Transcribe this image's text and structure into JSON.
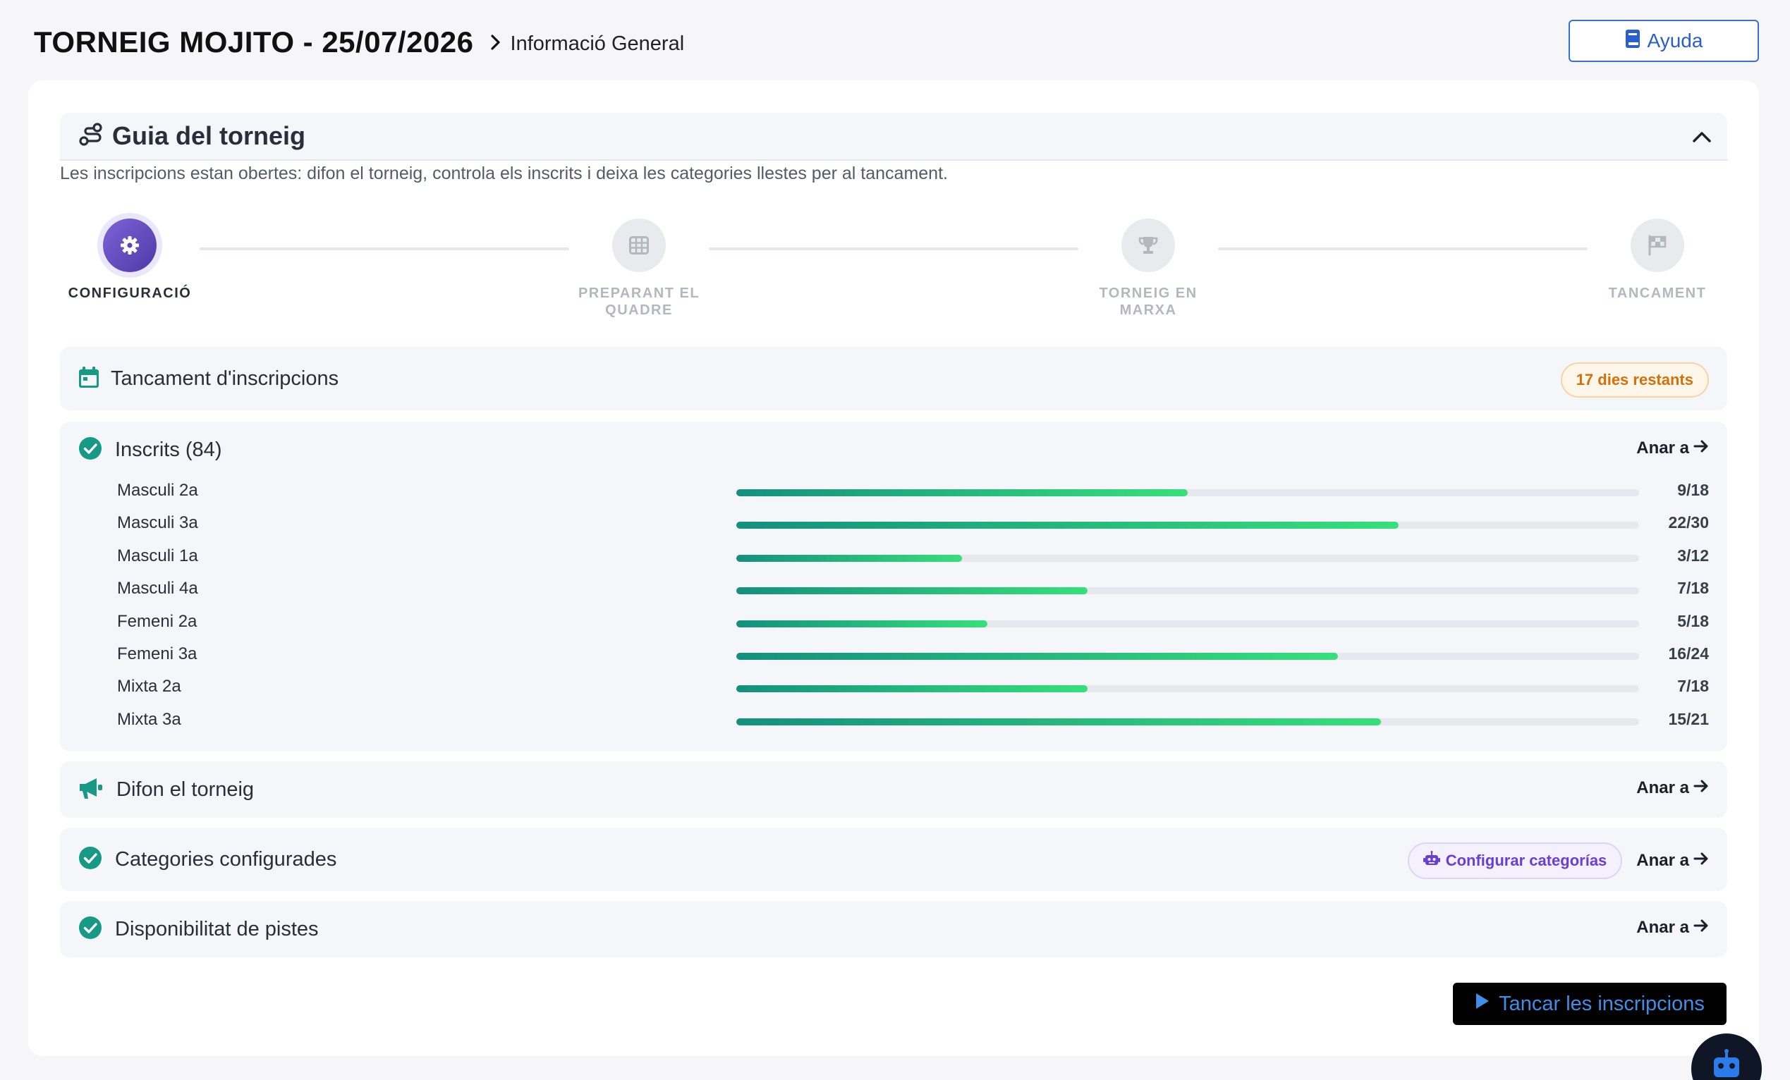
{
  "header": {
    "title": "TORNEIG MOJITO - 25/07/2026",
    "breadcrumb": "Informació General",
    "help_label": "Ayuda"
  },
  "guide": {
    "title": "Guia del torneig",
    "description": "Les inscripcions estan obertes: difon el torneig, controla els inscrits i deixa les categories llestes per al tancament.",
    "steps": [
      {
        "label": "CONFIGURACIÓ",
        "icon": "gear-icon",
        "active": true
      },
      {
        "label": "PREPARANT EL QUADRE",
        "icon": "grid-icon",
        "active": false
      },
      {
        "label": "TORNEIG EN MARXA",
        "icon": "trophy-icon",
        "active": false
      },
      {
        "label": "TANCAMENT",
        "icon": "flag-icon",
        "active": false
      }
    ]
  },
  "deadline": {
    "title": "Tancament d'inscripcions",
    "badge": "17 dies restants"
  },
  "registrations": {
    "title": "Inscrits (84)",
    "go_label": "Anar a",
    "categories": [
      {
        "name": "Masculi 2a",
        "count": "9/18",
        "fraction": 0.5
      },
      {
        "name": "Masculi 3a",
        "count": "22/30",
        "fraction": 0.7333
      },
      {
        "name": "Masculi 1a",
        "count": "3/12",
        "fraction": 0.25
      },
      {
        "name": "Masculi 4a",
        "count": "7/18",
        "fraction": 0.3889
      },
      {
        "name": "Femeni 2a",
        "count": "5/18",
        "fraction": 0.2778
      },
      {
        "name": "Femeni 3a",
        "count": "16/24",
        "fraction": 0.6667
      },
      {
        "name": "Mixta 2a",
        "count": "7/18",
        "fraction": 0.3889
      },
      {
        "name": "Mixta 3a",
        "count": "15/21",
        "fraction": 0.7143
      }
    ]
  },
  "promote": {
    "title": "Difon el torneig",
    "go_label": "Anar a"
  },
  "configured": {
    "title": "Categories configurades",
    "ai_badge": "Configurar categorías",
    "go_label": "Anar a"
  },
  "courts": {
    "title": "Disponibilitat de pistes",
    "go_label": "Anar a"
  },
  "action": {
    "label": "Tancar les inscripcions"
  },
  "colors": {
    "accent_purple": "#5b45b8",
    "success_teal": "#169985",
    "warning_orange": "#d1710c",
    "link_blue": "#2a5fd0"
  }
}
